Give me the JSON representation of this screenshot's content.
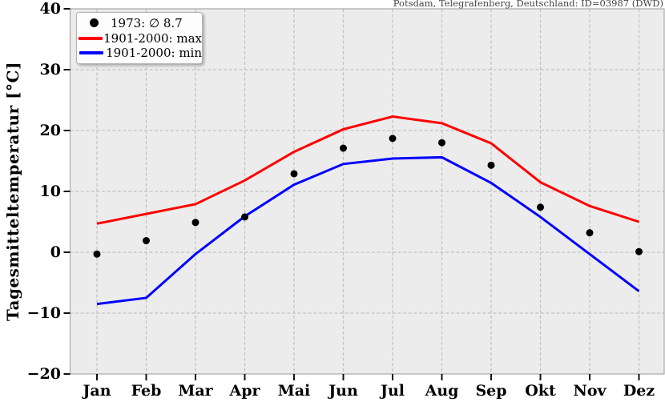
{
  "station_label": "Potsdam, Telegrafenberg, Deutschland: ID=03987 (DWD)",
  "chart_data": {
    "type": "line",
    "title": "",
    "ylabel": "Tagesmitteltemperatur [°C]",
    "xlabel": "",
    "categories": [
      "Jan",
      "Feb",
      "Mar",
      "Apr",
      "Mai",
      "Jun",
      "Jul",
      "Aug",
      "Sep",
      "Okt",
      "Nov",
      "Dez"
    ],
    "ylim": [
      -20,
      40
    ],
    "yticks": [
      {
        "value": 40,
        "label": "40"
      },
      {
        "value": 30,
        "label": "30"
      },
      {
        "value": 20,
        "label": "20"
      },
      {
        "value": 10,
        "label": "10"
      },
      {
        "value": 0,
        "label": "0"
      },
      {
        "value": -10,
        "label": "−10"
      },
      {
        "value": -20,
        "label": "−20"
      }
    ],
    "grid": true,
    "legend_position": "upper left",
    "series": [
      {
        "name": "1973: ∅ 8.7",
        "type": "scatter",
        "color": "#000000",
        "values": [
          -0.3,
          1.9,
          4.9,
          5.8,
          12.9,
          17.1,
          18.7,
          18.0,
          14.3,
          7.4,
          3.2,
          0.1
        ]
      },
      {
        "name": "1901-2000: max",
        "type": "line",
        "color": "#ff0000",
        "values": [
          4.7,
          6.3,
          7.9,
          11.8,
          16.5,
          20.2,
          22.3,
          21.2,
          17.9,
          11.5,
          7.6,
          5.0
        ]
      },
      {
        "name": "1901-2000: min",
        "type": "line",
        "color": "#0000ff",
        "values": [
          -8.5,
          -7.5,
          -0.3,
          5.9,
          11.1,
          14.5,
          15.4,
          15.6,
          11.4,
          5.8,
          -0.3,
          -6.4
        ]
      }
    ],
    "colors": {
      "plot_background": "#ececec",
      "grid": "#c3c3c3",
      "spine": "#a8a8a8",
      "tick": "#111111"
    }
  }
}
